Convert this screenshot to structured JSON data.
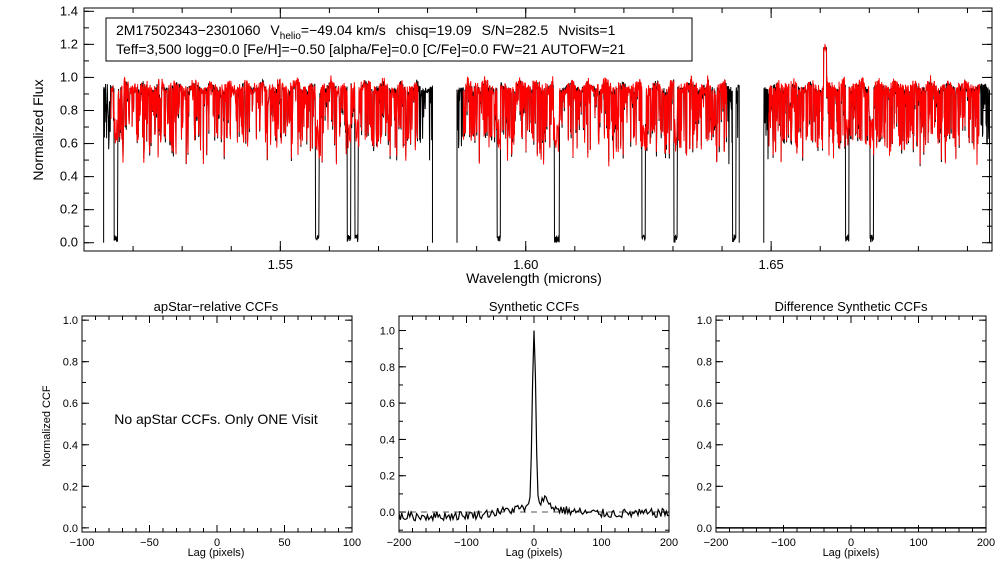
{
  "chart_data": [
    {
      "type": "line",
      "panel": "spectrum",
      "xlabel": "Wavelength (microns)",
      "ylabel": "Normalized Flux",
      "xlim": [
        1.51,
        1.695
      ],
      "ylim": [
        -0.05,
        1.42
      ],
      "x_ticks": [
        1.55,
        1.6,
        1.65
      ],
      "x_tick_labels": [
        "1.55",
        "1.60",
        "1.65"
      ],
      "y_ticks": [
        0.0,
        0.2,
        0.4,
        0.6,
        0.8,
        1.0,
        1.2,
        1.4
      ],
      "y_tick_labels": [
        "0.0",
        "0.2",
        "0.4",
        "0.6",
        "0.8",
        "1.0",
        "1.2",
        "1.4"
      ],
      "chips": [
        [
          1.514,
          1.581
        ],
        [
          1.586,
          1.6435
        ],
        [
          1.6485,
          1.6945
        ]
      ],
      "series": [
        {
          "name": "observed spectrum",
          "color": "#000000"
        },
        {
          "name": "best-fit synthetic",
          "color": "#ff0000"
        }
      ],
      "info_line1": {
        "id": "2M17502343−2301060",
        "v_prefix": "V",
        "v_sub": "helio",
        "v_value": "=−49.04 km/s",
        "chisq": "chisq=19.09",
        "sn": "S/N=282.5",
        "nvisits": "Nvisits=1"
      },
      "info_line2": "Teff=3,500 logg=0.0 [Fe/H]=−0.50 [alpha/Fe]=0.0 [C/Fe]=0.0 FW=21 AUTOFW=21"
    },
    {
      "type": "line",
      "panel": "apstar-ccf",
      "title": "apStar−relative CCFs",
      "xlabel": "Lag (pixels)",
      "ylabel": "Normalized CCF",
      "xlim": [
        -100,
        100
      ],
      "ylim": [
        -0.02,
        1.02
      ],
      "x_ticks": [
        -100,
        -50,
        0,
        50,
        100
      ],
      "x_tick_labels": [
        "−100",
        "−50",
        "0",
        "50",
        "100"
      ],
      "y_ticks": [
        0.0,
        0.2,
        0.4,
        0.6,
        0.8,
        1.0
      ],
      "y_tick_labels": [
        "0.0",
        "0.2",
        "0.4",
        "0.6",
        "0.8",
        "1.0"
      ],
      "note": "No apStar CCFs.  Only ONE Visit"
    },
    {
      "type": "line",
      "panel": "synthetic-ccf",
      "title": "Synthetic CCFs",
      "xlabel": "Lag (pixels)",
      "xlim": [
        -200,
        200
      ],
      "ylim": [
        -0.11,
        1.08
      ],
      "x_ticks": [
        -200,
        -100,
        0,
        100,
        200
      ],
      "x_tick_labels": [
        "−200",
        "−100",
        "0",
        "100",
        "200"
      ],
      "y_ticks": [
        0.0,
        0.2,
        0.4,
        0.6,
        0.8,
        1.0
      ],
      "y_tick_labels": [
        "0.0",
        "0.2",
        "0.4",
        "0.6",
        "0.8",
        "1.0"
      ],
      "peak_lag": 0,
      "peak_value": 1.0,
      "baseline": 0.0
    },
    {
      "type": "line",
      "panel": "difference-ccf",
      "title": "Difference Synthetic CCFs",
      "xlabel": "Lag (pixels)",
      "xlim": [
        -200,
        200
      ],
      "ylim": [
        -0.02,
        1.02
      ],
      "x_ticks": [
        -200,
        -100,
        0,
        100,
        200
      ],
      "x_tick_labels": [
        "−200",
        "−100",
        "0",
        "100",
        "200"
      ],
      "y_ticks": [
        0.0,
        0.2,
        0.4,
        0.6,
        0.8,
        1.0
      ],
      "y_tick_labels": [
        "0.0",
        "0.2",
        "0.4",
        "0.6",
        "0.8",
        "1.0"
      ],
      "values_all": 0.0
    }
  ]
}
